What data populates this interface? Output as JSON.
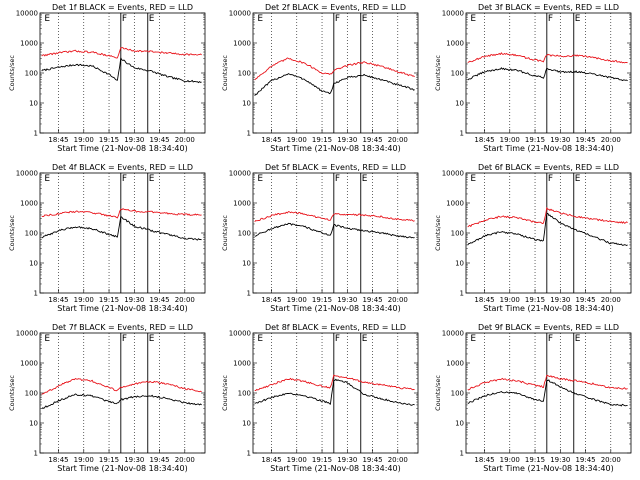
{
  "colors": {
    "events": "#000000",
    "lld": "#e8141b",
    "background": "#ffffff"
  },
  "chart_data": [
    {
      "type": "line",
      "title": "Det 1f BLACK = Events, RED = LLD",
      "xlabel": "Start Time (21-Nov-08 18:34:40)",
      "ylabel": "Counts/sec",
      "xlim": [
        "18:34",
        "20:12"
      ],
      "ylim": [
        1,
        10000
      ],
      "yscale": "log",
      "xticks": [
        "18:45",
        "19:00",
        "19:15",
        "19:30",
        "19:45",
        "20:00"
      ],
      "yticks": [
        "1",
        "10",
        "100",
        "1000",
        "10000"
      ],
      "markers": [
        {
          "label": "E",
          "time": "18:36"
        },
        {
          "label": "F",
          "time": "19:22"
        },
        {
          "label": "E",
          "time": "19:38"
        }
      ],
      "x": [
        "18:35",
        "18:45",
        "18:55",
        "19:05",
        "19:15",
        "19:20",
        "19:22",
        "19:30",
        "19:40",
        "19:50",
        "20:00",
        "20:10"
      ],
      "series": [
        {
          "name": "Events",
          "values": [
            120,
            155,
            190,
            170,
            90,
            55,
            300,
            150,
            115,
            75,
            55,
            50
          ]
        },
        {
          "name": "LLD",
          "values": [
            380,
            470,
            540,
            490,
            380,
            310,
            700,
            550,
            520,
            460,
            420,
            400
          ]
        }
      ]
    },
    {
      "type": "line",
      "title": "Det 2f BLACK = Events, RED = LLD",
      "xlabel": "Start Time (21-Nov-08 18:34:40)",
      "ylabel": "Counts/sec",
      "xlim": [
        "18:34",
        "20:12"
      ],
      "ylim": [
        1,
        10000
      ],
      "yscale": "log",
      "xticks": [
        "18:45",
        "19:00",
        "19:15",
        "19:30",
        "19:45",
        "20:00"
      ],
      "yticks": [
        "1",
        "10",
        "100",
        "1000",
        "10000"
      ],
      "markers": [
        {
          "label": "E",
          "time": "18:36"
        },
        {
          "label": "F",
          "time": "19:22"
        },
        {
          "label": "E",
          "time": "19:38"
        }
      ],
      "x": [
        "18:35",
        "18:45",
        "18:55",
        "19:05",
        "19:15",
        "19:20",
        "19:22",
        "19:30",
        "19:40",
        "19:50",
        "20:00",
        "20:10"
      ],
      "series": [
        {
          "name": "Events",
          "values": [
            18,
            55,
            95,
            60,
            25,
            20,
            45,
            70,
            85,
            60,
            40,
            28
          ]
        },
        {
          "name": "LLD",
          "values": [
            60,
            170,
            310,
            210,
            100,
            90,
            120,
            180,
            230,
            170,
            110,
            75
          ]
        }
      ]
    },
    {
      "type": "line",
      "title": "Det 3f BLACK = Events, RED = LLD",
      "xlabel": "Start Time (21-Nov-08 18:34:40)",
      "ylabel": "Counts/sec",
      "xlim": [
        "18:34",
        "20:12"
      ],
      "ylim": [
        1,
        10000
      ],
      "yscale": "log",
      "xticks": [
        "18:45",
        "19:00",
        "19:15",
        "19:30",
        "19:45",
        "20:00"
      ],
      "yticks": [
        "1",
        "10",
        "100",
        "1000",
        "10000"
      ],
      "markers": [
        {
          "label": "E",
          "time": "18:36"
        },
        {
          "label": "F",
          "time": "19:22"
        },
        {
          "label": "E",
          "time": "19:38"
        }
      ],
      "x": [
        "18:35",
        "18:45",
        "18:55",
        "19:05",
        "19:15",
        "19:20",
        "19:22",
        "19:30",
        "19:40",
        "19:50",
        "20:00",
        "20:10"
      ],
      "series": [
        {
          "name": "Events",
          "values": [
            60,
            110,
            140,
            120,
            80,
            70,
            140,
            110,
            110,
            90,
            70,
            55
          ]
        },
        {
          "name": "LLD",
          "values": [
            230,
            350,
            450,
            380,
            270,
            250,
            400,
            360,
            380,
            330,
            260,
            220
          ]
        }
      ]
    },
    {
      "type": "line",
      "title": "Det 4f BLACK = Events, RED = LLD",
      "xlabel": "Start Time (21-Nov-08 18:34:40)",
      "ylabel": "Counts/sec",
      "xlim": [
        "18:34",
        "20:12"
      ],
      "ylim": [
        1,
        10000
      ],
      "yscale": "log",
      "xticks": [
        "18:45",
        "19:00",
        "19:15",
        "19:30",
        "19:45",
        "20:00"
      ],
      "yticks": [
        "1",
        "10",
        "100",
        "1000",
        "10000"
      ],
      "markers": [
        {
          "label": "E",
          "time": "18:36"
        },
        {
          "label": "F",
          "time": "19:22"
        },
        {
          "label": "E",
          "time": "19:38"
        }
      ],
      "x": [
        "18:35",
        "18:45",
        "18:55",
        "19:05",
        "19:15",
        "19:20",
        "19:22",
        "19:30",
        "19:40",
        "19:50",
        "20:00",
        "20:10"
      ],
      "series": [
        {
          "name": "Events",
          "values": [
            70,
            120,
            160,
            140,
            90,
            75,
            350,
            170,
            120,
            90,
            65,
            60
          ]
        },
        {
          "name": "LLD",
          "values": [
            370,
            440,
            520,
            480,
            380,
            330,
            650,
            530,
            500,
            450,
            410,
            400
          ]
        }
      ]
    },
    {
      "type": "line",
      "title": "Det 5f BLACK = Events, RED = LLD",
      "xlabel": "Start Time (21-Nov-08 18:34:40)",
      "ylabel": "Counts/sec",
      "xlim": [
        "18:34",
        "20:12"
      ],
      "ylim": [
        1,
        10000
      ],
      "yscale": "log",
      "xticks": [
        "18:45",
        "19:00",
        "19:15",
        "19:30",
        "19:45",
        "20:00"
      ],
      "yticks": [
        "1",
        "10",
        "100",
        "1000",
        "10000"
      ],
      "markers": [
        {
          "label": "E",
          "time": "18:36"
        },
        {
          "label": "F",
          "time": "19:22"
        },
        {
          "label": "E",
          "time": "19:38"
        }
      ],
      "x": [
        "18:35",
        "18:45",
        "18:55",
        "19:05",
        "19:15",
        "19:20",
        "19:22",
        "19:30",
        "19:40",
        "19:50",
        "20:00",
        "20:10"
      ],
      "series": [
        {
          "name": "Events",
          "values": [
            80,
            140,
            200,
            160,
            100,
            85,
            190,
            140,
            120,
            100,
            80,
            70
          ]
        },
        {
          "name": "LLD",
          "values": [
            240,
            380,
            500,
            430,
            300,
            270,
            450,
            410,
            400,
            350,
            290,
            260
          ]
        }
      ]
    },
    {
      "type": "line",
      "title": "Det 6f BLACK = Events, RED = LLD",
      "xlabel": "Start Time (21-Nov-08 18:34:40)",
      "ylabel": "Counts/sec",
      "xlim": [
        "18:34",
        "20:12"
      ],
      "ylim": [
        1,
        10000
      ],
      "yscale": "log",
      "xticks": [
        "18:45",
        "19:00",
        "19:15",
        "19:30",
        "19:45",
        "20:00"
      ],
      "yticks": [
        "1",
        "10",
        "100",
        "1000",
        "10000"
      ],
      "markers": [
        {
          "label": "E",
          "time": "18:36"
        },
        {
          "label": "F",
          "time": "19:22"
        },
        {
          "label": "E",
          "time": "19:38"
        }
      ],
      "x": [
        "18:35",
        "18:45",
        "18:55",
        "19:05",
        "19:15",
        "19:20",
        "19:22",
        "19:30",
        "19:40",
        "19:50",
        "20:00",
        "20:10"
      ],
      "series": [
        {
          "name": "Events",
          "values": [
            40,
            80,
            110,
            90,
            60,
            55,
            450,
            220,
            120,
            75,
            45,
            40
          ]
        },
        {
          "name": "LLD",
          "values": [
            160,
            260,
            360,
            320,
            230,
            210,
            650,
            460,
            350,
            290,
            240,
            220
          ]
        }
      ]
    },
    {
      "type": "line",
      "title": "Det 7f BLACK = Events, RED = LLD",
      "xlabel": "Start Time (21-Nov-08 18:34:40)",
      "ylabel": "Counts/sec",
      "xlim": [
        "18:34",
        "20:12"
      ],
      "ylim": [
        1,
        10000
      ],
      "yscale": "log",
      "xticks": [
        "18:45",
        "19:00",
        "19:15",
        "19:30",
        "19:45",
        "20:00"
      ],
      "yticks": [
        "1",
        "10",
        "100",
        "1000",
        "10000"
      ],
      "markers": [
        {
          "label": "E",
          "time": "18:36"
        },
        {
          "label": "F",
          "time": "19:22"
        },
        {
          "label": "E",
          "time": "19:38"
        }
      ],
      "x": [
        "18:35",
        "18:45",
        "18:55",
        "19:05",
        "19:15",
        "19:20",
        "19:22",
        "19:30",
        "19:40",
        "19:50",
        "20:00",
        "20:10"
      ],
      "series": [
        {
          "name": "Events",
          "values": [
            30,
            55,
            90,
            80,
            50,
            45,
            60,
            75,
            80,
            65,
            48,
            40
          ]
        },
        {
          "name": "LLD",
          "values": [
            90,
            170,
            300,
            250,
            150,
            120,
            150,
            200,
            240,
            200,
            140,
            110
          ]
        }
      ]
    },
    {
      "type": "line",
      "title": "Det 8f BLACK = Events, RED = LLD",
      "xlabel": "Start Time (21-Nov-08 18:34:40)",
      "ylabel": "Counts/sec",
      "xlim": [
        "18:34",
        "20:12"
      ],
      "ylim": [
        1,
        10000
      ],
      "yscale": "log",
      "xticks": [
        "18:45",
        "19:00",
        "19:15",
        "19:30",
        "19:45",
        "20:00"
      ],
      "yticks": [
        "1",
        "10",
        "100",
        "1000",
        "10000"
      ],
      "markers": [
        {
          "label": "E",
          "time": "18:36"
        },
        {
          "label": "F",
          "time": "19:22"
        },
        {
          "label": "E",
          "time": "19:38"
        }
      ],
      "x": [
        "18:35",
        "18:45",
        "18:55",
        "19:05",
        "19:15",
        "19:20",
        "19:22",
        "19:30",
        "19:40",
        "19:50",
        "20:00",
        "20:10"
      ],
      "series": [
        {
          "name": "Events",
          "values": [
            45,
            70,
            100,
            80,
            55,
            45,
            280,
            220,
            90,
            65,
            48,
            40
          ]
        },
        {
          "name": "LLD",
          "values": [
            120,
            190,
            300,
            240,
            170,
            150,
            380,
            320,
            230,
            190,
            150,
            130
          ]
        }
      ]
    },
    {
      "type": "line",
      "title": "Det 9f BLACK = Events, RED = LLD",
      "xlabel": "Start Time (21-Nov-08 18:34:40)",
      "ylabel": "Counts/sec",
      "xlim": [
        "18:34",
        "20:12"
      ],
      "ylim": [
        1,
        10000
      ],
      "yscale": "log",
      "xticks": [
        "18:45",
        "19:00",
        "19:15",
        "19:30",
        "19:45",
        "20:00"
      ],
      "yticks": [
        "1",
        "10",
        "100",
        "1000",
        "10000"
      ],
      "markers": [
        {
          "label": "E",
          "time": "18:36"
        },
        {
          "label": "F",
          "time": "19:22"
        },
        {
          "label": "E",
          "time": "19:38"
        }
      ],
      "x": [
        "18:35",
        "18:45",
        "18:55",
        "19:05",
        "19:15",
        "19:20",
        "19:22",
        "19:30",
        "19:40",
        "19:50",
        "20:00",
        "20:10"
      ],
      "series": [
        {
          "name": "Events",
          "values": [
            45,
            80,
            110,
            95,
            60,
            55,
            280,
            160,
            90,
            60,
            42,
            38
          ]
        },
        {
          "name": "LLD",
          "values": [
            130,
            220,
            290,
            250,
            180,
            160,
            380,
            300,
            250,
            200,
            150,
            140
          ]
        }
      ]
    }
  ]
}
